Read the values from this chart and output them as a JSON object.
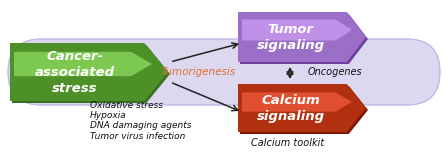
{
  "fig_width": 4.48,
  "fig_height": 1.54,
  "dpi": 100,
  "bg_color": "#ffffff",
  "tube_color": "#dcd8f0",
  "tube_edge_color": "#c0b8e8",
  "cancer_color_dark": "#3a7020",
  "cancer_color_mid": "#4e9028",
  "cancer_color_light": "#7dc850",
  "tumor_color_dark": "#7040a0",
  "tumor_color_mid": "#9b6fc8",
  "tumor_color_light": "#c090e8",
  "calcium_color_dark": "#801808",
  "calcium_color_mid": "#b03010",
  "calcium_color_light": "#e05030",
  "cancer_text": "Cancer-\nassociated\nstress",
  "tumor_text": "Tumor\nsignaling",
  "calcium_text": "Calcium\nsignaling",
  "tumorigenesis_text": "Tumorigenesis",
  "tumorigenesis_color": "#e07030",
  "oncogenes_text": "Oncogenes",
  "calcium_toolkit_text": "Calcium toolkit",
  "stress_list": [
    "Oxidative stress",
    "Hypoxia",
    "DNA damaging agents",
    "Tumor virus infection"
  ],
  "arrow_color": "#222222",
  "white": "#ffffff",
  "label_color": "#111111"
}
